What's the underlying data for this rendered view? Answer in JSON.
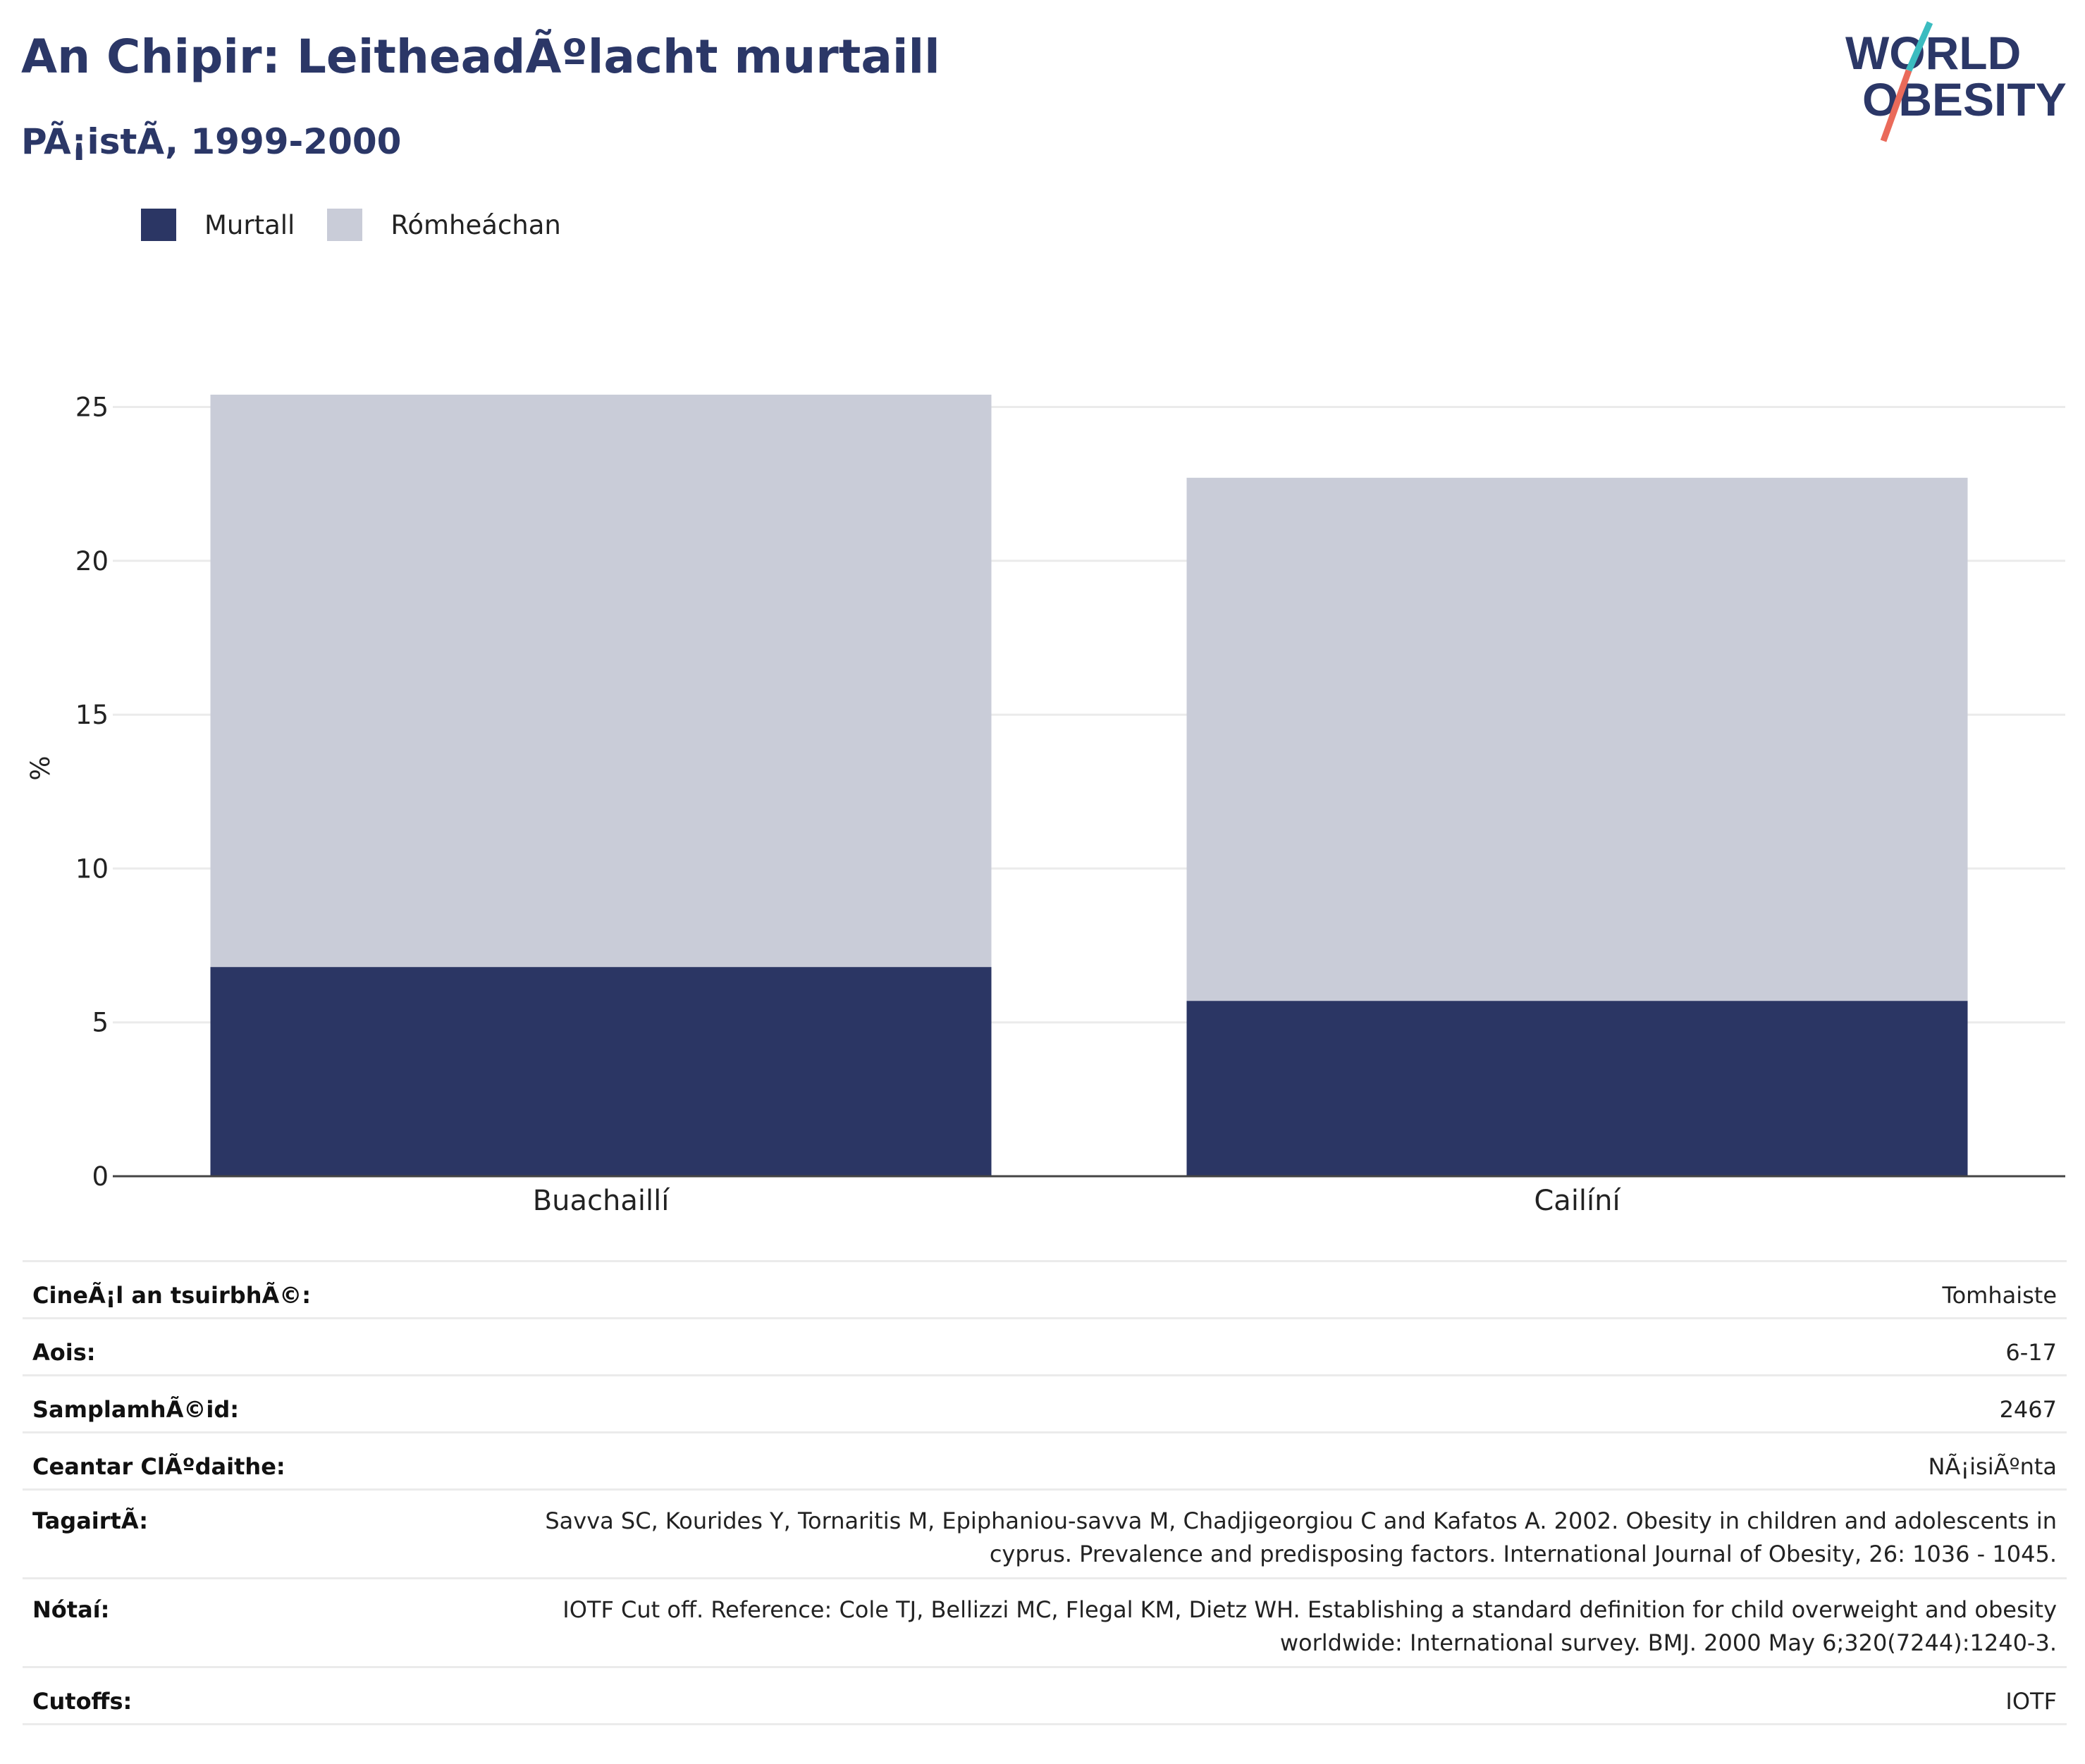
{
  "header": {
    "title": "An Chipir: LeitheadÃºlacht murtaill",
    "subtitle": "PÃ¡istÃ, 1999-2000"
  },
  "logo": {
    "line1": "WORLD",
    "line2": "OBESITY"
  },
  "colors": {
    "murtall": "#2b3664",
    "romheachan": "#c9ccd8",
    "title": "#2b3767",
    "logo_teal": "#3bbcc0",
    "logo_coral": "#ea6a5a"
  },
  "chart_data": {
    "type": "bar",
    "stacked": true,
    "categories": [
      "Buachaillí",
      "Cailíní"
    ],
    "series": [
      {
        "name": "Murtall",
        "values": [
          6.8,
          5.7
        ]
      },
      {
        "name": "Rómheáchan",
        "values": [
          18.6,
          17.0
        ]
      }
    ],
    "ylabel": "%",
    "ylim": [
      0,
      25.4
    ],
    "yticks": [
      0,
      5,
      10,
      15,
      20,
      25
    ],
    "grid": true,
    "legend_position": "top-left"
  },
  "info": [
    {
      "label": "CineÃ¡l an tsuirbhÃ©:",
      "value": "Tomhaiste"
    },
    {
      "label": "Aois:",
      "value": "6-17"
    },
    {
      "label": "SamplamhÃ©id:",
      "value": "2467"
    },
    {
      "label": "Ceantar ClÃºdaithe:",
      "value": "NÃ¡isiÃºnta"
    },
    {
      "label": "TagairtÃ:",
      "value": "Savva SC, Kourides Y, Tornaritis M, Epiphaniou-savva M, Chadjigeorgiou C and Kafatos A. 2002. Obesity in children and adolescents in cyprus. Prevalence and predisposing factors. International Journal of Obesity, 26: 1036 - 1045."
    },
    {
      "label": "Nótaí:",
      "value": "IOTF Cut off. Reference: Cole TJ, Bellizzi MC, Flegal KM, Dietz WH. Establishing a standard definition for child overweight and obesity worldwide: International survey. BMJ. 2000 May 6;320(7244):1240-3."
    },
    {
      "label": "Cutoffs:",
      "value": "IOTF"
    }
  ]
}
